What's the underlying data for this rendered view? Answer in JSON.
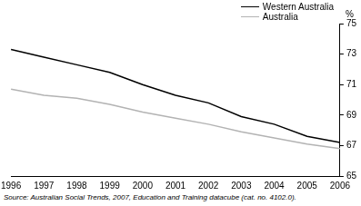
{
  "chart_data": {
    "type": "line",
    "y_label": "%",
    "source": "Source: Australian Social Trends, 2007, Education and Training datacube (cat. no. 4102.0).",
    "categories": [
      "1996",
      "1997",
      "1998",
      "1999",
      "2000",
      "2001",
      "2002",
      "2003",
      "2004",
      "2005",
      "2006"
    ],
    "series": [
      {
        "name": "Western Australia",
        "color": "#000000",
        "values": [
          73.3,
          72.8,
          72.3,
          71.8,
          71.0,
          70.3,
          69.8,
          68.9,
          68.4,
          67.6,
          67.2
        ]
      },
      {
        "name": "Australia",
        "color": "#b3b3b3",
        "values": [
          70.7,
          70.3,
          70.1,
          69.7,
          69.2,
          68.8,
          68.4,
          67.9,
          67.5,
          67.1,
          66.8
        ]
      }
    ],
    "ylim": [
      65,
      75
    ],
    "yticks": [
      65,
      67,
      69,
      71,
      73,
      75
    ],
    "grid": false,
    "legend": "upper right"
  }
}
